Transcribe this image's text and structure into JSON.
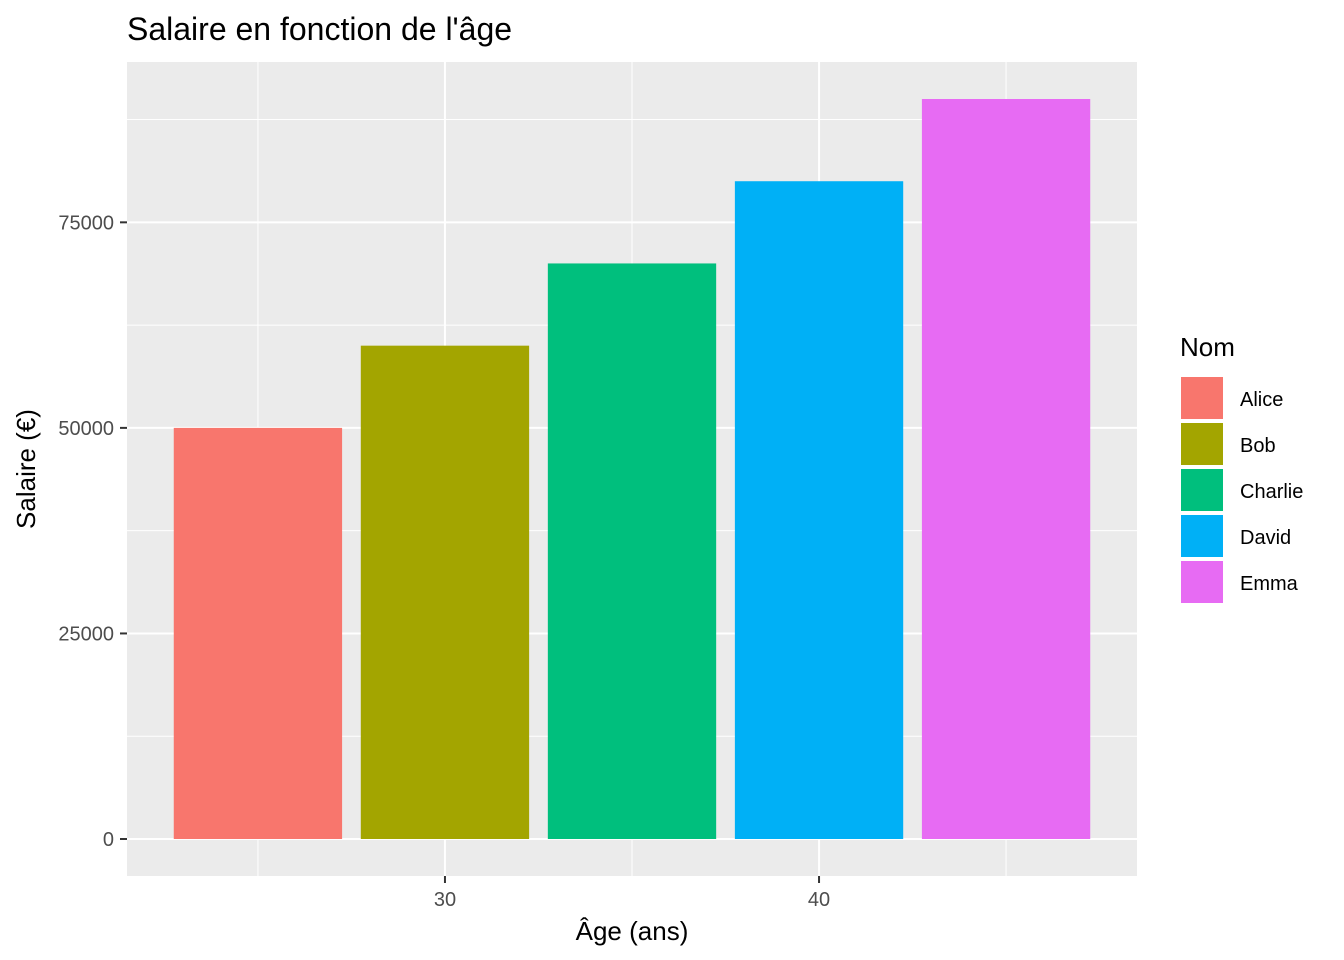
{
  "chart_data": {
    "type": "bar",
    "title": "Salaire en fonction de l'âge",
    "xlabel": "Âge (ans)",
    "ylabel": "Salaire (€)",
    "xlim": [
      21.5,
      48.5
    ],
    "ylim": [
      -4500,
      94500
    ],
    "x_ticks": [
      30,
      40
    ],
    "y_ticks": [
      0,
      25000,
      50000,
      75000
    ],
    "bar_width": 4.5,
    "grid": true,
    "legend": {
      "title": "Nom",
      "position": "right"
    },
    "series": [
      {
        "name": "Alice",
        "x": 25,
        "value": 50000,
        "color": "#F8766D"
      },
      {
        "name": "Bob",
        "x": 30,
        "value": 60000,
        "color": "#A3A500"
      },
      {
        "name": "Charlie",
        "x": 35,
        "value": 70000,
        "color": "#00BF7D"
      },
      {
        "name": "David",
        "x": 40,
        "value": 80000,
        "color": "#00B0F6"
      },
      {
        "name": "Emma",
        "x": 45,
        "value": 90000,
        "color": "#E76BF3"
      }
    ]
  }
}
